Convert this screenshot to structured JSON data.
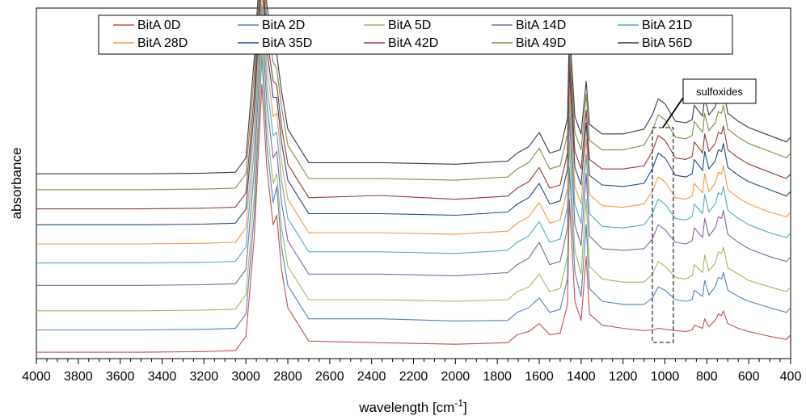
{
  "chart_data": {
    "type": "line",
    "title": "",
    "xlabel_main": "wavelength [cm",
    "xlabel_sup": "-1",
    "xlabel_end": "]",
    "ylabel": "absorbance",
    "xlim": [
      4000,
      400
    ],
    "x_reversed": true,
    "ylim": [
      0,
      11
    ],
    "y_ticks_shown": false,
    "grid": false,
    "legend_placement": "top-center",
    "x_ticks": [
      4000,
      3800,
      3600,
      3400,
      3200,
      3000,
      2800,
      2600,
      2400,
      2200,
      2000,
      1800,
      1600,
      1400,
      1200,
      1000,
      800,
      600,
      400
    ],
    "x_tick_labels": [
      "4000",
      "3800",
      "3600",
      "3400",
      "3200",
      "3000",
      "2800",
      "2600",
      "2400",
      "2200",
      "2000",
      "1800",
      "1600",
      "1400",
      "1200",
      "1000",
      "800",
      "600",
      "400"
    ],
    "x": [
      4000,
      3500,
      3200,
      3050,
      3000,
      2960,
      2924,
      2900,
      2870,
      2853,
      2830,
      2800,
      2700,
      2360,
      2000,
      1750,
      1705,
      1650,
      1600,
      1550,
      1500,
      1465,
      1456,
      1430,
      1400,
      1376,
      1360,
      1300,
      1200,
      1100,
      1060,
      1032,
      1000,
      950,
      900,
      870,
      860,
      820,
      810,
      790,
      760,
      745,
      730,
      721,
      700,
      650,
      600,
      500,
      420,
      400
    ],
    "series": [
      {
        "name": "BitA 0D",
        "color": "#c0504d",
        "values": [
          0.2,
          0.2,
          0.22,
          0.25,
          0.7,
          3.8,
          8.6,
          6.0,
          4.2,
          4.5,
          2.8,
          1.6,
          0.55,
          0.5,
          0.45,
          0.5,
          0.75,
          0.85,
          1.1,
          0.75,
          0.8,
          1.7,
          5.0,
          1.8,
          1.2,
          3.2,
          1.4,
          1.05,
          0.95,
          0.88,
          0.9,
          0.95,
          0.92,
          0.88,
          0.85,
          0.9,
          1.05,
          0.95,
          1.25,
          1.0,
          1.2,
          1.4,
          1.35,
          1.5,
          1.1,
          0.95,
          0.85,
          0.7,
          0.6,
          0.75
        ]
      },
      {
        "name": "BitA 2D",
        "color": "#4f81bd",
        "values": [
          0.2,
          0.2,
          0.22,
          0.25,
          0.7,
          3.8,
          8.8,
          6.0,
          4.2,
          4.7,
          2.8,
          1.6,
          0.55,
          0.55,
          0.48,
          0.5,
          0.75,
          0.9,
          1.2,
          0.75,
          0.85,
          1.8,
          5.3,
          2.0,
          1.25,
          3.5,
          1.5,
          1.1,
          1.0,
          1.0,
          1.2,
          1.55,
          1.45,
          1.15,
          1.1,
          1.15,
          1.45,
          1.25,
          1.75,
          1.3,
          1.55,
          1.85,
          1.8,
          2.0,
          1.45,
          1.25,
          1.1,
          0.9,
          0.75,
          0.9
        ]
      },
      {
        "name": "BitA 5D",
        "color": "#9bbb59",
        "values": [
          0.2,
          0.2,
          0.22,
          0.25,
          0.7,
          3.8,
          8.5,
          6.0,
          4.2,
          4.5,
          2.8,
          1.6,
          0.55,
          0.55,
          0.5,
          0.55,
          0.8,
          0.95,
          1.35,
          0.8,
          0.9,
          1.9,
          5.5,
          2.1,
          1.35,
          3.7,
          1.6,
          1.2,
          1.1,
          1.1,
          1.35,
          1.75,
          1.6,
          1.25,
          1.2,
          1.3,
          1.65,
          1.4,
          1.95,
          1.45,
          1.7,
          2.05,
          2.0,
          2.2,
          1.55,
          1.35,
          1.15,
          0.95,
          0.8,
          0.95
        ]
      },
      {
        "name": "BitA 14D",
        "color": "#8064a2",
        "values": [
          0.2,
          0.2,
          0.22,
          0.25,
          0.7,
          3.8,
          8.4,
          5.9,
          4.2,
          4.4,
          2.8,
          1.6,
          0.55,
          0.55,
          0.5,
          0.6,
          0.85,
          1.05,
          1.55,
          0.85,
          0.95,
          2.0,
          5.5,
          2.1,
          1.45,
          3.7,
          1.75,
          1.35,
          1.3,
          1.35,
          1.65,
          2.1,
          1.95,
          1.55,
          1.5,
          1.6,
          2.0,
          1.7,
          2.3,
          1.75,
          2.0,
          2.35,
          2.3,
          2.55,
          1.8,
          1.55,
          1.35,
          1.1,
          0.95,
          1.1
        ]
      },
      {
        "name": "BitA 21D",
        "color": "#4bacc6",
        "values": [
          0.2,
          0.2,
          0.22,
          0.25,
          0.7,
          3.8,
          8.3,
          5.8,
          4.2,
          4.3,
          2.8,
          1.6,
          0.55,
          0.55,
          0.5,
          0.6,
          0.85,
          1.05,
          1.5,
          0.85,
          0.95,
          1.95,
          5.3,
          2.05,
          1.45,
          3.6,
          1.75,
          1.35,
          1.3,
          1.4,
          1.75,
          2.2,
          2.05,
          1.6,
          1.55,
          1.65,
          2.05,
          1.75,
          2.35,
          1.8,
          2.05,
          2.4,
          2.35,
          2.6,
          1.85,
          1.6,
          1.4,
          1.15,
          1.0,
          1.15
        ]
      },
      {
        "name": "BitA 28D",
        "color": "#f79646",
        "values": [
          0.2,
          0.2,
          0.22,
          0.25,
          0.7,
          3.8,
          8.2,
          5.8,
          4.2,
          4.3,
          2.8,
          1.6,
          0.55,
          0.55,
          0.5,
          0.6,
          0.85,
          1.05,
          1.5,
          0.85,
          0.95,
          1.95,
          5.2,
          2.0,
          1.45,
          3.5,
          1.75,
          1.4,
          1.35,
          1.45,
          1.85,
          2.3,
          2.15,
          1.65,
          1.6,
          1.7,
          2.1,
          1.8,
          2.4,
          1.85,
          2.1,
          2.45,
          2.4,
          2.65,
          1.9,
          1.65,
          1.45,
          1.2,
          1.05,
          1.2
        ]
      },
      {
        "name": "BitA 35D",
        "color": "#1f497d",
        "values": [
          0.2,
          0.2,
          0.22,
          0.25,
          0.7,
          3.8,
          8.0,
          5.7,
          4.2,
          4.2,
          2.8,
          1.6,
          0.55,
          0.55,
          0.5,
          0.6,
          0.85,
          1.05,
          1.5,
          0.85,
          0.95,
          1.95,
          5.1,
          2.0,
          1.45,
          3.4,
          1.75,
          1.45,
          1.4,
          1.5,
          1.95,
          2.45,
          2.3,
          1.75,
          1.7,
          1.8,
          2.25,
          1.9,
          2.5,
          1.95,
          2.2,
          2.55,
          2.5,
          2.75,
          2.0,
          1.75,
          1.55,
          1.3,
          1.1,
          1.25
        ]
      },
      {
        "name": "BitA 42D",
        "color": "#953735",
        "values": [
          0.2,
          0.2,
          0.22,
          0.25,
          0.7,
          3.8,
          7.9,
          5.6,
          4.2,
          4.1,
          2.8,
          1.6,
          0.55,
          0.62,
          0.5,
          0.6,
          0.85,
          1.05,
          1.5,
          0.85,
          0.95,
          1.95,
          5.0,
          2.0,
          1.45,
          3.3,
          1.75,
          1.45,
          1.45,
          1.55,
          2.0,
          2.5,
          2.35,
          1.8,
          1.75,
          1.85,
          2.3,
          1.95,
          2.55,
          2.0,
          2.25,
          2.6,
          2.55,
          2.8,
          2.05,
          1.8,
          1.6,
          1.35,
          1.15,
          1.3
        ]
      },
      {
        "name": "BitA 49D",
        "color": "#76923c",
        "values": [
          0.2,
          0.2,
          0.22,
          0.25,
          0.7,
          3.8,
          7.8,
          5.5,
          4.2,
          4.0,
          2.8,
          1.6,
          0.55,
          0.55,
          0.5,
          0.6,
          0.85,
          1.05,
          1.5,
          0.85,
          0.95,
          1.95,
          4.9,
          2.0,
          1.45,
          3.2,
          1.75,
          1.45,
          1.45,
          1.6,
          2.05,
          2.55,
          2.4,
          1.85,
          1.8,
          1.9,
          2.35,
          2.0,
          2.6,
          2.05,
          2.3,
          2.65,
          2.6,
          2.85,
          2.1,
          1.85,
          1.65,
          1.4,
          1.2,
          1.35
        ]
      },
      {
        "name": "BitA 56D",
        "color": "#403152",
        "values": [
          0.2,
          0.2,
          0.22,
          0.25,
          0.7,
          3.8,
          7.7,
          5.5,
          4.2,
          3.95,
          2.8,
          1.6,
          0.55,
          0.55,
          0.5,
          0.6,
          0.85,
          1.05,
          1.5,
          0.85,
          0.95,
          1.95,
          4.8,
          2.0,
          1.45,
          3.1,
          1.75,
          1.45,
          1.45,
          1.6,
          2.05,
          2.55,
          2.4,
          1.85,
          1.8,
          1.9,
          2.35,
          2.0,
          2.6,
          2.05,
          2.3,
          2.65,
          2.6,
          2.85,
          2.1,
          1.85,
          1.65,
          1.4,
          1.2,
          1.35
        ]
      }
    ],
    "offsets": [
      0.0,
      0.7,
      1.3,
      2.1,
      2.8,
      3.4,
      4.0,
      4.5,
      5.1,
      5.6
    ],
    "annotations": [
      {
        "text": "sulfoxides",
        "x_range": [
          1060,
          960
        ]
      }
    ]
  }
}
